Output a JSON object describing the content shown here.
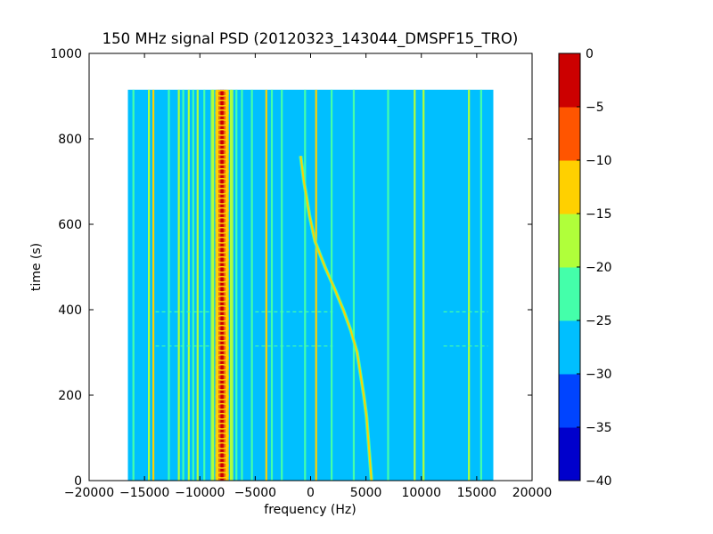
{
  "chart_data": {
    "type": "heatmap",
    "title": "150 MHz signal PSD (20120323_143044_DMSPF15_TRO)",
    "xlabel": "frequency (Hz)",
    "ylabel": "time (s)",
    "xlim": [
      -20000,
      20000
    ],
    "ylim": [
      0,
      1000
    ],
    "xticks": [
      -20000,
      -15000,
      -10000,
      -5000,
      0,
      5000,
      10000,
      15000,
      20000
    ],
    "xtick_labels": [
      "−20000",
      "−15000",
      "−10000",
      "−5000",
      "0",
      "5000",
      "10000",
      "15000",
      "20000"
    ],
    "yticks": [
      0,
      200,
      400,
      600,
      800,
      1000
    ],
    "ytick_labels": [
      "0",
      "200",
      "400",
      "600",
      "800",
      "1000"
    ],
    "data_extent": {
      "x": [
        -16500,
        16500
      ],
      "y": [
        0,
        915
      ]
    },
    "background_level": -27.5,
    "colorbar": {
      "levels": [
        -40,
        -35,
        -30,
        -25,
        -20,
        -15,
        -10,
        -5,
        0
      ],
      "tick_labels": [
        "−40",
        "−35",
        "−30",
        "−25",
        "−20",
        "−15",
        "−10",
        "−5",
        "0"
      ],
      "colors": [
        "#0000cc",
        "#0044ff",
        "#00bfff",
        "#44ffaa",
        "#b0ff3a",
        "#ffd000",
        "#ff5500",
        "#cc0000"
      ]
    },
    "carrier": {
      "center_hz": -8000,
      "peak_level": -2,
      "main_color": "#cc0000"
    },
    "vertical_lines": [
      {
        "x": -16000,
        "color": "#44ffaa"
      },
      {
        "x": -14600,
        "color": "#b0ff3a"
      },
      {
        "x": -14200,
        "color": "#ffd000"
      },
      {
        "x": -12800,
        "color": "#44ffaa"
      },
      {
        "x": -11900,
        "color": "#b0ff3a"
      },
      {
        "x": -11500,
        "color": "#44ffaa"
      },
      {
        "x": -11000,
        "color": "#b0ff3a"
      },
      {
        "x": -10600,
        "color": "#44ffaa"
      },
      {
        "x": -10200,
        "color": "#b0ff3a"
      },
      {
        "x": -9600,
        "color": "#44ffaa"
      },
      {
        "x": -8800,
        "color": "#b0ff3a"
      },
      {
        "x": -8400,
        "color": "#ffd000"
      },
      {
        "x": -7600,
        "color": "#ffd000"
      },
      {
        "x": -7200,
        "color": "#b0ff3a"
      },
      {
        "x": -6700,
        "color": "#44ffaa"
      },
      {
        "x": -6200,
        "color": "#44ffaa"
      },
      {
        "x": -5300,
        "color": "#44ffaa"
      },
      {
        "x": -4000,
        "color": "#ffd000"
      },
      {
        "x": -3500,
        "color": "#44ffaa"
      },
      {
        "x": -2600,
        "color": "#44ffaa"
      },
      {
        "x": -500,
        "color": "#44ffaa"
      },
      {
        "x": 500,
        "color": "#ffd000"
      },
      {
        "x": 1900,
        "color": "#44ffaa"
      },
      {
        "x": 3900,
        "color": "#44ffaa"
      },
      {
        "x": 7000,
        "color": "#44ffaa"
      },
      {
        "x": 9400,
        "color": "#b0ff3a"
      },
      {
        "x": 10200,
        "color": "#b0ff3a"
      },
      {
        "x": 14300,
        "color": "#b0ff3a"
      },
      {
        "x": 15400,
        "color": "#44ffaa"
      }
    ],
    "doppler_curve": {
      "color": "#ffd000",
      "points": [
        [
          5500,
          0
        ],
        [
          5350,
          50
        ],
        [
          5200,
          100
        ],
        [
          5050,
          150
        ],
        [
          4800,
          200
        ],
        [
          4500,
          250
        ],
        [
          4200,
          300
        ],
        [
          3650,
          350
        ],
        [
          2950,
          400
        ],
        [
          2150,
          450
        ],
        [
          1300,
          500
        ],
        [
          400,
          560
        ],
        [
          -100,
          620
        ],
        [
          -600,
          700
        ],
        [
          -900,
          760
        ]
      ]
    }
  }
}
